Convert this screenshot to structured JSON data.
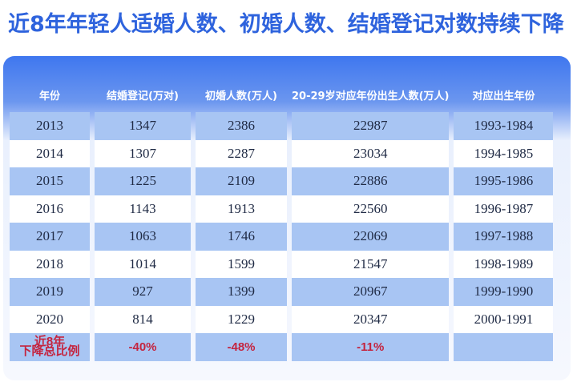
{
  "title": "近8年年轻人适婚人数、初婚人数、结婚登记对数持续下降",
  "table": {
    "headers": [
      "年份",
      "结婚登记(万对)",
      "初婚人数(万人)",
      "20-29岁对应年份出生人数(万人)",
      "对应出生年份"
    ],
    "rows": [
      [
        "2013",
        "1347",
        "2386",
        "22987",
        "1993-1984"
      ],
      [
        "2014",
        "1307",
        "2287",
        "23034",
        "1994-1985"
      ],
      [
        "2015",
        "1225",
        "2109",
        "22886",
        "1995-1986"
      ],
      [
        "2016",
        "1143",
        "1913",
        "22560",
        "1996-1987"
      ],
      [
        "2017",
        "1063",
        "1746",
        "22069",
        "1997-1988"
      ],
      [
        "2018",
        "1014",
        "1599",
        "21547",
        "1998-1989"
      ],
      [
        "2019",
        "927",
        "1399",
        "20967",
        "1999-1990"
      ],
      [
        "2020",
        "814",
        "1229",
        "20347",
        "2000-1991"
      ]
    ],
    "summary": {
      "label_line1": "近8年",
      "label_line2": "下降总比例",
      "values": [
        "-40%",
        "-48%",
        "-11%",
        ""
      ]
    }
  },
  "colors": {
    "title": "#2e63dd",
    "header": "#3f77ef",
    "row_shade": "#a8c5f3",
    "decline": "#c4243f"
  }
}
